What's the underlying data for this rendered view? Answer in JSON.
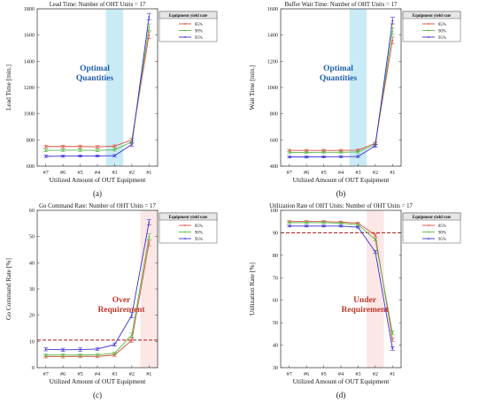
{
  "figure": {
    "panels": [
      {
        "caption": "(a)",
        "title": "Lead Time: Number of OHT Units = 17",
        "xlabel": "Utilized Amount of OUT Equipment",
        "ylabel": "Lead Time [min.]",
        "annotation": [
          "Optimal",
          "Quantities"
        ],
        "annotation_color": "#1f5fae",
        "shade_color": "#bfe8f5",
        "legend_title": "Equipment yield rate"
      },
      {
        "caption": "(b)",
        "title": "Buffer Wait Time: Number of OHT Units = 17",
        "xlabel": "Utilized Amount of OUT Equipment",
        "ylabel": "Wait Time [min.]",
        "annotation": [
          "Optimal",
          "Quantities"
        ],
        "annotation_color": "#1f5fae",
        "shade_color": "#bfe8f5",
        "legend_title": "Equipment yield rate"
      },
      {
        "caption": "(c)",
        "title": "Go Command Rate: Number of OHT Units = 17",
        "xlabel": "Utilized Amount of OUT Equipment",
        "ylabel": "Go Command Rate [%]",
        "annotation": [
          "Over",
          "Requirement"
        ],
        "annotation_color": "#c0392b",
        "shade_color": "#fbe3e3",
        "legend_title": "Equipment yield rate"
      },
      {
        "caption": "(d)",
        "title": "Utilization Rate of OHT Units: Number of OHT Units = 17",
        "xlabel": "Utilized Amount of OUT Equipment",
        "ylabel": "Utilization Rate [%]",
        "annotation": [
          "Under",
          "Requirement"
        ],
        "annotation_color": "#c0392b",
        "shade_color": "#fbe3e3",
        "legend_title": "Equipment yield rate"
      }
    ]
  },
  "chart_data": [
    {
      "type": "line",
      "title": "Lead Time: Number of OHT Units = 17",
      "xlabel": "Utilized Amount of OUT Equipment",
      "ylabel": "Lead Time [min.]",
      "categories": [
        "#7",
        "#6",
        "#5",
        "#4",
        "#3",
        "#2",
        "#1"
      ],
      "ylim": [
        600,
        1800
      ],
      "yticks": [
        600,
        800,
        1000,
        1200,
        1400,
        1600,
        1800
      ],
      "grid": false,
      "legend_placement": "top-right",
      "legend_title": "Equipment yield rate",
      "shaded_category": "#3",
      "series": [
        {
          "name": "85%",
          "color": "#d94f3d",
          "values": [
            750,
            750,
            750,
            748,
            752,
            800,
            1600
          ],
          "errors": [
            10,
            10,
            10,
            10,
            10,
            12,
            25
          ]
        },
        {
          "name": "90%",
          "color": "#58b848",
          "values": [
            720,
            722,
            722,
            720,
            725,
            785,
            1660
          ],
          "errors": [
            10,
            10,
            10,
            10,
            10,
            12,
            25
          ]
        },
        {
          "name": "95%",
          "color": "#3a2fd0",
          "values": [
            675,
            676,
            677,
            678,
            680,
            765,
            1740
          ],
          "errors": [
            8,
            8,
            8,
            8,
            8,
            12,
            25
          ]
        }
      ]
    },
    {
      "type": "line",
      "title": "Buffer Wait Time: Number of OHT Units = 17",
      "xlabel": "Utilized Amount of OUT Equipment",
      "ylabel": "Wait Time [min.]",
      "categories": [
        "#7",
        "#6",
        "#5",
        "#4",
        "#3",
        "#2",
        "#1"
      ],
      "ylim": [
        400,
        1600
      ],
      "yticks": [
        400,
        600,
        800,
        1000,
        1200,
        1400,
        1600
      ],
      "grid": false,
      "legend_placement": "top-right",
      "legend_title": "Equipment yield rate",
      "shaded_category": "#3",
      "series": [
        {
          "name": "85%",
          "color": "#d94f3d",
          "values": [
            520,
            520,
            520,
            520,
            522,
            575,
            1360
          ],
          "errors": [
            8,
            8,
            8,
            8,
            8,
            12,
            25
          ]
        },
        {
          "name": "90%",
          "color": "#58b848",
          "values": [
            505,
            505,
            506,
            506,
            508,
            565,
            1430
          ],
          "errors": [
            8,
            8,
            8,
            8,
            8,
            12,
            25
          ]
        },
        {
          "name": "95%",
          "color": "#3a2fd0",
          "values": [
            470,
            470,
            471,
            472,
            474,
            555,
            1510
          ],
          "errors": [
            8,
            8,
            8,
            8,
            8,
            12,
            25
          ]
        }
      ]
    },
    {
      "type": "line",
      "title": "Go Command Rate: Number of OHT Units = 17",
      "xlabel": "Utilized Amount of OUT Equipment",
      "ylabel": "Go Command Rate [%]",
      "categories": [
        "#7",
        "#6",
        "#5",
        "#4",
        "#3",
        "#2",
        "#1"
      ],
      "ylim": [
        0,
        60
      ],
      "yticks": [
        0,
        10,
        20,
        30,
        40,
        50,
        60
      ],
      "grid": false,
      "legend_placement": "top-right",
      "legend_title": "Equipment yield rate",
      "shaded_category": "#1",
      "reference_line": 10.5,
      "series": [
        {
          "name": "85%",
          "color": "#d94f3d",
          "values": [
            4.2,
            4.2,
            4.3,
            4.3,
            4.8,
            10.5,
            47.5
          ],
          "errors": [
            0.5,
            0.5,
            0.5,
            0.5,
            0.5,
            0.8,
            1.0
          ]
        },
        {
          "name": "90%",
          "color": "#58b848",
          "values": [
            4.8,
            4.8,
            4.8,
            4.9,
            5.5,
            12.5,
            50
          ],
          "errors": [
            0.5,
            0.5,
            0.5,
            0.5,
            0.5,
            0.8,
            1.0
          ]
        },
        {
          "name": "95%",
          "color": "#3a2fd0",
          "values": [
            7,
            6.8,
            6.9,
            7.1,
            8.8,
            20,
            55.5
          ],
          "errors": [
            0.6,
            0.6,
            0.6,
            0.6,
            0.6,
            1.0,
            1.0
          ]
        }
      ]
    },
    {
      "type": "line",
      "title": "Utilization Rate of OHT Units: Number of OHT Units = 17",
      "xlabel": "Utilized Amount of OUT Equipment",
      "ylabel": "Utilization Rate [%]",
      "categories": [
        "#7",
        "#6",
        "#5",
        "#4",
        "#3",
        "#2",
        "#1"
      ],
      "ylim": [
        30,
        100
      ],
      "yticks": [
        30,
        40,
        50,
        60,
        70,
        80,
        90,
        100
      ],
      "grid": false,
      "legend_placement": "top-right",
      "legend_title": "Equipment yield rate",
      "shaded_category": "#2",
      "reference_line": 90,
      "series": [
        {
          "name": "85%",
          "color": "#d94f3d",
          "values": [
            95,
            95,
            95,
            94.8,
            94.3,
            89,
            42.5
          ],
          "errors": [
            0.4,
            0.4,
            0.4,
            0.4,
            0.4,
            0.6,
            0.8
          ]
        },
        {
          "name": "90%",
          "color": "#58b848",
          "values": [
            94.5,
            94.5,
            94.5,
            94.3,
            93.6,
            87,
            45.5
          ],
          "errors": [
            0.4,
            0.4,
            0.4,
            0.4,
            0.4,
            0.6,
            0.8
          ]
        },
        {
          "name": "95%",
          "color": "#3a2fd0",
          "values": [
            93,
            93,
            93,
            93,
            92.5,
            81.5,
            38.5
          ],
          "errors": [
            0.4,
            0.4,
            0.4,
            0.4,
            0.4,
            0.6,
            0.8
          ]
        }
      ]
    }
  ]
}
